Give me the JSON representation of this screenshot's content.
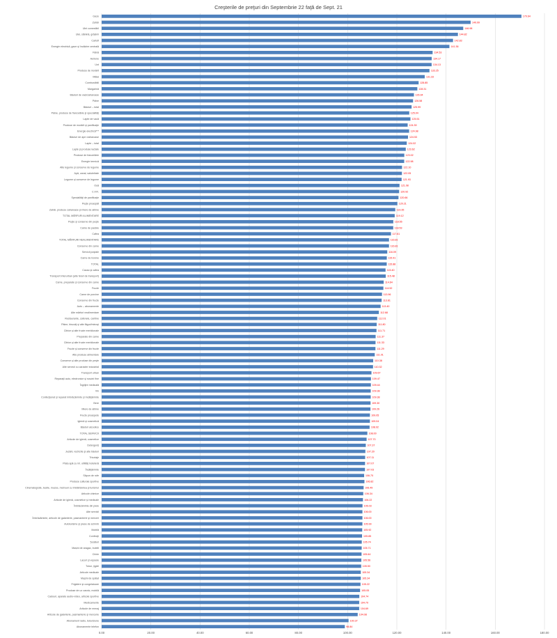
{
  "chart_data": {
    "type": "bar",
    "orientation": "horizontal",
    "title": "Creşterile de preţuri din Septembrie  22 faţă de Sept. 21",
    "xlim": [
      0,
      180
    ],
    "xticks": [
      "0.00",
      "20.00",
      "40.00",
      "60.00",
      "80.00",
      "100.00",
      "120.00",
      "140.00",
      "160.00",
      "180.00"
    ],
    "grid": "vertical",
    "bar_color": "#4f81bd",
    "label_color": "#ff0000",
    "categories": [
      "Gaze",
      "Zahăr",
      "Ulei comestibil",
      "Ulei, slănină, grăsimi",
      "Cartofi",
      "Energie electrică, gaze şi încălzire centrală",
      "Făină",
      "Aeriene",
      "Unt",
      "Produse de morărit",
      "Mălai",
      "Combustibili",
      "Margarină",
      "Băuturi de vaci/zaharoase",
      "Pâine",
      "Băuturi – total",
      "Pâine, produse de franzelărie şi specialităţi",
      "Lapte de vacă",
      "Produse de morărit şi panificaţie",
      "Energie electrică***",
      "Băuturi de ape /zaharoase",
      "Lapte – total",
      "Lapte şi produse lactate",
      "Produse de franzelărie",
      "Energie termică",
      "Alte legume şi conserve de legume",
      "Apă, canal, salubritate",
      "Legume şi conserve de legume",
      "Ouă",
      "C.F.R.",
      "Specialităţi de panificaţie",
      "Peşte proaspăt",
      "Zahăr, produse zaharoase şi miere de albine",
      "TOTAL MĂRFURI ALIMENTARE",
      "Peşte şi conserve din peşte",
      "Carne de pasăre",
      "Cafea",
      "TOTAL MĂRFURI NEALIMENTARE",
      "Conserve din carne",
      "Servicii poştale",
      "Carne de bovine",
      "TOTAL",
      "Cacao şi cafea",
      "Transport interurban (alte feluri de transport)",
      "Carne, preparate şi conserve din carne",
      "Fructe",
      "Carne de porcine",
      "Conserve din fructe",
      "Auto – abonamente",
      "Alte mărfuri nealimentare",
      "Restaurante, cafenele, cantine",
      "Pâine, biscuiţi şi alte făguri/minoşi",
      "Citrice şi alte fructe meridionale",
      "Preparate din carne",
      "Citrice şi alte fructe meridionale",
      "Fructe şi conserve din fructe",
      "Alte produse alimentare",
      "Conserve şi alte produse din peşte",
      "Alte servicii cu caracter industrial",
      "Transport urban",
      "Reparaţii auto, electronice şi ruscini fine",
      "Îngrijire medicală",
      "Vin",
      "Confecţionat şi reparat îmbrăcăminte şi încălţăminte",
      "Bere",
      "Miere de albine",
      "Fructe proaspete",
      "Igienă şi cosmetică",
      "Băuturi alcoolice",
      "TOTAL SERVICII",
      "Articole de igienă, cosmetice",
      "Detergenţi",
      "Jucării, rechizite şi alte băuturi",
      "Tricotaje",
      "Plata apă cu înl. utilităţi hotelieră",
      "Încălţăminte",
      "Săpun de rufe",
      "Produse culturale sportive",
      "Cinematografe, teatre, muzee, metrouri cu îmbătrânirea şi turismul",
      "Articole chimice",
      "Articole de igienă, cosmetice şi medicale",
      "Îmbrăcăminte din piele",
      "Alte servicii",
      "Îmbrăcăminte, articole de galanterie, pasmanterie şi merceri",
      "Autoturisme şi piese de schimb",
      "Mobilă",
      "Confecţii",
      "Ţesături",
      "Mașini de aragaz, butelii",
      "Chirie",
      "Lacuri şi vopsele",
      "Tutun, ţigări",
      "Articole medicale",
      "Maşini de spălat",
      "Frigidere şi congelatoare",
      "Produse de uz casnic, mobilă",
      "Cadouri, aparate audio-video, articole sportive",
      "Medicamente",
      "Articole de menaj",
      "Articole de galanterie, pasmanterie şi mercerie",
      "Abonament radio, televiziune",
      "Abonamente telefon"
    ],
    "values": [
      170.64,
      149.99,
      146.98,
      144.82,
      142.83,
      141.36,
      134.53,
      134.17,
      134.13,
      133.25,
      131.33,
      128.85,
      128.31,
      126.94,
      126.58,
      125.99,
      125.04,
      125.51,
      124.39,
      124.98,
      124.53,
      124.02,
      123.62,
      123.02,
      122.98,
      122.1,
      122.05,
      121.93,
      121.08,
      120.92,
      120.66,
      120.21,
      119.35,
      119.12,
      118.55,
      118.53,
      117.61,
      116.81,
      116.81,
      116.09,
      115.91,
      115.88,
      115.4,
      115.48,
      114.64,
      114.52,
      113.96,
      113.81,
      113.4,
      112.68,
      112.01,
      111.8,
      111.71,
      111.37,
      111.33,
      111.29,
      111.01,
      110.38,
      110.32,
      109.67,
      109.47,
      109.44,
      109.38,
      109.38,
      109.3,
      109.26,
      109.05,
      109.04,
      108.92,
      108.0,
      107.7,
      107.37,
      107.2,
      107.11,
      107.07,
      107.03,
      106.7,
      106.82,
      106.49,
      106.34,
      106.22,
      106.03,
      106.0,
      106.0,
      105.99,
      105.92,
      105.85,
      105.74,
      105.71,
      105.64,
      105.56,
      105.5,
      105.34,
      105.34,
      105.22,
      105.05,
      104.74,
      104.7,
      104.69,
      104.08,
      100.37,
      98.84
    ],
    "data_labels": [
      "170.64",
      "149.99",
      "146.98",
      "144.82",
      "142.83",
      "141.36",
      "134.53",
      "134.17",
      "134.13",
      "133.25",
      "131.33",
      "128.85",
      "128.31",
      "126.94",
      "126.58",
      "125.99",
      "125.04",
      "125.51",
      "124.39",
      "124.98",
      "124.53",
      "124.02",
      "123.62",
      "123.02",
      "122.98",
      "122.10",
      "122.05",
      "121.93",
      "121.08",
      "120.92",
      "120.66",
      "120.21",
      "119.35",
      "119.12",
      "118.55",
      "118.53",
      "117.61",
      "116.81",
      "116.81",
      "116.09",
      "115.91",
      "115.88",
      "115.40",
      "115.48",
      "114.64",
      "114.52",
      "113.96",
      "113.81",
      "113.40",
      "112.68",
      "112.01",
      "111.80",
      "111.71",
      "111.37",
      "111.33",
      "111.29",
      "111.01",
      "110.38",
      "110.32",
      "109.67",
      "109.47",
      "109.44",
      "109.38",
      "109.38",
      "109.30",
      "109.26",
      "109.05",
      "109.04",
      "108.92",
      "108.00",
      "107.70",
      "107.37",
      "107.20",
      "107.11",
      "107.07",
      "107.03",
      "106.70",
      "106.82",
      "106.49",
      "106.34",
      "106.22",
      "106.03",
      "106.00",
      "106.00",
      "105.99",
      "105.92",
      "105.85",
      "105.74",
      "105.71",
      "105.64",
      "105.56",
      "105.50",
      "105.34",
      "105.34",
      "105.22",
      "105.05",
      "104.74",
      "104.70",
      "104.69",
      "104.08",
      "100.37",
      "98.84"
    ]
  }
}
